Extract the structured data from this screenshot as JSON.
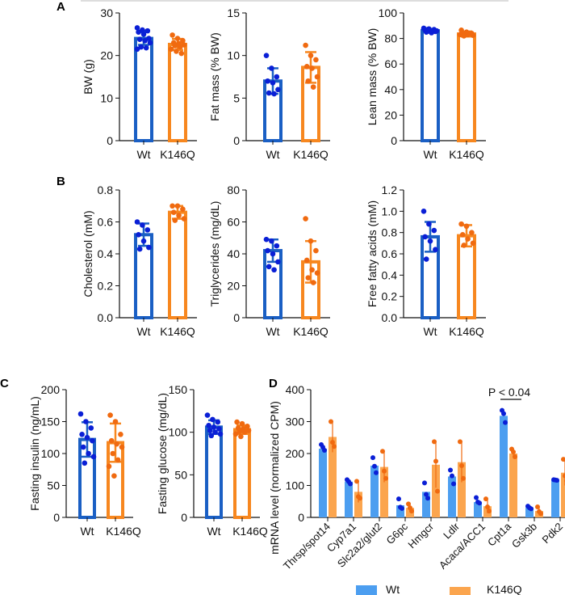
{
  "panel_labels": [
    "A",
    "B",
    "C",
    "D"
  ],
  "colors": {
    "wt": "#1a5fc4",
    "wt_dot": "#0a1fd6",
    "k146q": "#f7871f",
    "k146q_dot": "#f06a10",
    "wt_bar_d": "#4c9ef0",
    "k146q_bar_d": "#fba54e"
  },
  "chart_data": [
    {
      "type": "bar",
      "panel": "A",
      "ylabel": "BW (g)",
      "ylim": [
        0,
        30
      ],
      "yticks": [
        "0",
        "10",
        "20",
        "30"
      ],
      "categories": [
        "Wt",
        "K146Q"
      ],
      "series": [
        {
          "name": "Wt",
          "mean": 24,
          "sd": 1.5,
          "points": [
            26.5,
            26,
            25.8,
            25.5,
            25,
            24,
            23.8,
            23.5,
            23,
            22,
            21.8,
            21.5
          ]
        },
        {
          "name": "K146Q",
          "mean": 22.6,
          "sd": 1.3,
          "points": [
            24.8,
            24,
            23.5,
            23,
            22.8,
            22.5,
            22.3,
            22,
            21.5,
            21,
            20.5
          ]
        }
      ]
    },
    {
      "type": "bar",
      "panel": "A",
      "ylabel": "Fat mass (% BW)",
      "ylim": [
        0,
        15
      ],
      "yticks": [
        "0",
        "5",
        "10",
        "15"
      ],
      "categories": [
        "Wt",
        "K146Q"
      ],
      "series": [
        {
          "name": "Wt",
          "mean": 7.0,
          "sd": 1.5,
          "points": [
            10,
            8.5,
            7.5,
            7,
            6.8,
            6,
            5.6,
            5.5
          ]
        },
        {
          "name": "K146Q",
          "mean": 8.6,
          "sd": 1.8,
          "points": [
            11.2,
            10,
            9.5,
            8.7,
            8.5,
            7.5,
            7,
            6.3
          ]
        }
      ]
    },
    {
      "type": "bar",
      "panel": "A",
      "ylabel": "Lean mass (% BW)",
      "ylim": [
        0,
        100
      ],
      "yticks": [
        "0",
        "20",
        "40",
        "60",
        "80",
        "100"
      ],
      "categories": [
        "Wt",
        "K146Q"
      ],
      "series": [
        {
          "name": "Wt",
          "mean": 86,
          "sd": 1.5,
          "points": [
            88,
            87.5,
            87,
            86.5,
            86,
            85.5,
            85,
            84.5,
            86,
            87
          ]
        },
        {
          "name": "K146Q",
          "mean": 83.5,
          "sd": 2,
          "points": [
            86.5,
            85,
            84,
            83.5,
            83,
            82.5,
            82,
            84,
            83
          ]
        }
      ]
    },
    {
      "type": "bar",
      "panel": "B",
      "ylabel": "Cholesterol (mM)",
      "ylim": [
        0,
        0.8
      ],
      "yticks": [
        "0.0",
        "0.2",
        "0.4",
        "0.6",
        "0.8"
      ],
      "categories": [
        "Wt",
        "K146Q"
      ],
      "series": [
        {
          "name": "Wt",
          "mean": 0.52,
          "sd": 0.07,
          "points": [
            0.6,
            0.58,
            0.55,
            0.52,
            0.48,
            0.44,
            0.43
          ]
        },
        {
          "name": "K146Q",
          "mean": 0.66,
          "sd": 0.04,
          "points": [
            0.7,
            0.7,
            0.68,
            0.66,
            0.64,
            0.62,
            0.61
          ]
        }
      ]
    },
    {
      "type": "bar",
      "panel": "B",
      "ylabel": "Triglycerides (mg/dL)",
      "ylim": [
        0,
        80
      ],
      "yticks": [
        "0",
        "20",
        "40",
        "60",
        "80"
      ],
      "categories": [
        "Wt",
        "K146Q"
      ],
      "series": [
        {
          "name": "Wt",
          "mean": 42,
          "sd": 7,
          "points": [
            49,
            48,
            45,
            42,
            40,
            35,
            32,
            30
          ]
        },
        {
          "name": "K146Q",
          "mean": 35,
          "sd": 13,
          "points": [
            62,
            48,
            42,
            36,
            30,
            28,
            25,
            22
          ]
        }
      ]
    },
    {
      "type": "bar",
      "panel": "B",
      "ylabel": "Free fatty acids (mM)",
      "ylim": [
        0,
        1.2
      ],
      "yticks": [
        "0.0",
        "0.2",
        "0.4",
        "0.6",
        "0.8",
        "1.0",
        "1.2"
      ],
      "categories": [
        "Wt",
        "K146Q"
      ],
      "series": [
        {
          "name": "Wt",
          "mean": 0.76,
          "sd": 0.14,
          "points": [
            1.0,
            0.88,
            0.82,
            0.76,
            0.72,
            0.64,
            0.55
          ]
        },
        {
          "name": "K146Q",
          "mean": 0.77,
          "sd": 0.1,
          "points": [
            0.88,
            0.86,
            0.8,
            0.78,
            0.74,
            0.7,
            0.68
          ]
        }
      ]
    },
    {
      "type": "bar",
      "panel": "C",
      "ylabel": "Fasting insulin (ng/mL)",
      "ylim": [
        0,
        200
      ],
      "yticks": [
        "0",
        "50",
        "100",
        "150",
        "200"
      ],
      "categories": [
        "Wt",
        "K146Q"
      ],
      "series": [
        {
          "name": "Wt",
          "mean": 122,
          "sd": 27,
          "points": [
            162,
            150,
            140,
            130,
            125,
            120,
            110,
            100,
            95,
            85
          ]
        },
        {
          "name": "K146Q",
          "mean": 117,
          "sd": 30,
          "points": [
            160,
            150,
            130,
            120,
            115,
            110,
            100,
            90,
            80,
            65
          ]
        }
      ]
    },
    {
      "type": "bar",
      "panel": "C",
      "ylabel": "Fasting glucose (mg/dL)",
      "ylim": [
        0,
        150
      ],
      "yticks": [
        "0",
        "50",
        "100",
        "150"
      ],
      "categories": [
        "Wt",
        "K146Q"
      ],
      "series": [
        {
          "name": "Wt",
          "mean": 106,
          "sd": 8,
          "points": [
            120,
            115,
            112,
            108,
            106,
            104,
            102,
            100,
            98,
            96
          ]
        },
        {
          "name": "K146Q",
          "mean": 103,
          "sd": 5,
          "points": [
            112,
            110,
            107,
            105,
            104,
            102,
            101,
            100,
            98,
            95
          ]
        }
      ]
    },
    {
      "type": "bar",
      "panel": "D",
      "ylabel": "mRNA level (normalized CPM)",
      "ylim": [
        0,
        400
      ],
      "yticks": [
        "0",
        "100",
        "200",
        "300",
        "400"
      ],
      "categories": [
        "Thrsp/spot14",
        "Cyp7a1",
        "Slc2a2/glut2",
        "G6pc",
        "Hmgcr",
        "Ldlr",
        "Acaca/ACC1",
        "Cpt1a",
        "Gsk3b",
        "Pdk2"
      ],
      "series": [
        {
          "name": "Wt",
          "values": [
            215,
            112,
            162,
            38,
            80,
            128,
            48,
            318,
            30,
            117
          ],
          "sd": [
            10,
            6,
            22,
            14,
            25,
            20,
            10,
            14,
            5,
            2
          ],
          "points": [
            [
              228,
              220,
              210
            ],
            [
              118,
              112,
              105
            ],
            [
              187,
              160,
              140
            ],
            [
              58,
              32,
              28
            ],
            [
              108,
              72,
              60
            ],
            [
              148,
              130,
              105
            ],
            [
              62,
              48,
              45
            ],
            [
              335,
              325,
              297
            ],
            [
              35,
              30,
              27
            ],
            [
              118,
              117,
              116
            ]
          ]
        },
        {
          "name": "K146Q",
          "values": [
            252,
            80,
            158,
            30,
            165,
            173,
            35,
            200,
            20,
            140
          ],
          "sd": [
            48,
            33,
            48,
            13,
            72,
            63,
            22,
            12,
            13,
            40
          ],
          "points": [
            [
              300,
              235,
              222
            ],
            [
              113,
              65,
              60
            ],
            [
              207,
              145,
              122
            ],
            [
              42,
              30,
              20
            ],
            [
              237,
              176,
              82
            ],
            [
              237,
              162,
              122
            ],
            [
              58,
              33,
              20
            ],
            [
              214,
              205,
              190
            ],
            [
              33,
              18,
              12
            ],
            [
              182,
              130,
              115
            ]
          ]
        }
      ],
      "annotation": "P < 0.04",
      "annotation_category": "Cpt1a",
      "legend": {
        "position": "bottom",
        "entries": [
          "Wt",
          "K146Q"
        ]
      }
    }
  ]
}
